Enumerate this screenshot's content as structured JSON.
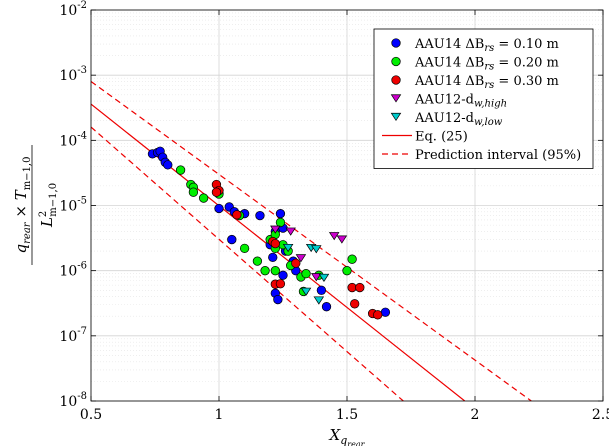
{
  "chart_data": {
    "type": "scatter",
    "xscale": "linear",
    "yscale": "log",
    "xlim": [
      0.5,
      2.5
    ],
    "ylim": [
      1e-08,
      0.01
    ],
    "xticks": [
      0.5,
      1,
      1.5,
      2,
      2.5
    ],
    "xtick_labels": [
      "0.5",
      "1",
      "1.5",
      "2",
      "2.5"
    ],
    "yticks": [
      1e-08,
      1e-07,
      1e-06,
      1e-05,
      0.0001,
      0.001,
      0.01
    ],
    "ytick_labels": [
      {
        "base": "10",
        "exp": "-8"
      },
      {
        "base": "10",
        "exp": "-7"
      },
      {
        "base": "10",
        "exp": "-6"
      },
      {
        "base": "10",
        "exp": "-5"
      },
      {
        "base": "10",
        "exp": "-4"
      },
      {
        "base": "10",
        "exp": "-3"
      },
      {
        "base": "10",
        "exp": "-2"
      }
    ],
    "grid": true,
    "minor_grid": true,
    "legend_position": "top-right",
    "xlabel": {
      "base": "X",
      "sub": "q",
      "subsub": "rear"
    },
    "ylabel": {
      "num_a": "q",
      "num_a_sub": "rear",
      "num_b": " × T",
      "num_b_sub": "m−1,0",
      "den": "L",
      "den_sup": "2",
      "den_sub": "m−1,0"
    },
    "series": [
      {
        "name": {
          "pre": "AAU14 ΔB",
          "sub": "rs",
          "post": " = 0.10 m"
        },
        "marker": "circle",
        "color": "#0000ff",
        "points": [
          [
            0.74,
            6.2e-05
          ],
          [
            0.76,
            6.5e-05
          ],
          [
            0.77,
            6.8e-05
          ],
          [
            0.78,
            5.5e-05
          ],
          [
            0.79,
            4.6e-05
          ],
          [
            0.8,
            4.2e-05
          ],
          [
            1.0,
            9e-06
          ],
          [
            1.04,
            9.5e-06
          ],
          [
            1.06,
            8e-06
          ],
          [
            1.1,
            7.5e-06
          ],
          [
            1.16,
            7e-06
          ],
          [
            1.05,
            3e-06
          ],
          [
            1.2,
            2.5e-06
          ],
          [
            1.21,
            1.6e-06
          ],
          [
            1.22,
            4e-06
          ],
          [
            1.24,
            7.5e-06
          ],
          [
            1.25,
            4.5e-06
          ],
          [
            1.26,
            2e-06
          ],
          [
            1.22,
            4.5e-07
          ],
          [
            1.23,
            3.6e-07
          ],
          [
            1.25,
            8.5e-07
          ],
          [
            1.29,
            1.4e-06
          ],
          [
            1.3,
            1e-06
          ],
          [
            1.4,
            5e-07
          ],
          [
            1.42,
            2.8e-07
          ],
          [
            1.65,
            2.3e-07
          ]
        ]
      },
      {
        "name": {
          "pre": "AAU14 ΔB",
          "sub": "rs",
          "post": " = 0.20 m"
        },
        "marker": "circle",
        "color": "#00ee00",
        "points": [
          [
            0.85,
            3.5e-05
          ],
          [
            0.89,
            2.1e-05
          ],
          [
            0.9,
            1.9e-05
          ],
          [
            0.9,
            1.6e-05
          ],
          [
            0.94,
            1.3e-05
          ],
          [
            1.0,
            1.5e-05
          ],
          [
            1.08,
            7e-06
          ],
          [
            1.1,
            2.2e-06
          ],
          [
            1.15,
            1.4e-06
          ],
          [
            1.18,
            1e-06
          ],
          [
            1.2,
            3e-06
          ],
          [
            1.22,
            3.6e-06
          ],
          [
            1.22,
            2.2e-06
          ],
          [
            1.22,
            1e-06
          ],
          [
            1.24,
            5.5e-06
          ],
          [
            1.25,
            2.5e-06
          ],
          [
            1.27,
            2e-06
          ],
          [
            1.28,
            1.2e-06
          ],
          [
            1.32,
            8e-07
          ],
          [
            1.34,
            9e-07
          ],
          [
            1.39,
            8.5e-07
          ],
          [
            1.33,
            4.8e-07
          ],
          [
            1.5,
            1e-06
          ],
          [
            1.52,
            1.5e-06
          ]
        ]
      },
      {
        "name": {
          "pre": "AAU14 ΔB",
          "sub": "rs",
          "post": " = 0.30 m"
        },
        "marker": "circle",
        "color": "#ee0000",
        "points": [
          [
            0.99,
            2.1e-05
          ],
          [
            1.0,
            1.7e-05
          ],
          [
            0.99,
            1.6e-05
          ],
          [
            1.07,
            7.2e-06
          ],
          [
            1.21,
            2.8e-06
          ],
          [
            1.22,
            2.6e-06
          ],
          [
            1.22,
            6.2e-07
          ],
          [
            1.24,
            6.3e-07
          ],
          [
            1.3,
            1.3e-06
          ],
          [
            1.52,
            5.5e-07
          ],
          [
            1.55,
            5.5e-07
          ],
          [
            1.53,
            3.1e-07
          ],
          [
            1.6,
            2.2e-07
          ],
          [
            1.62,
            2.1e-07
          ]
        ]
      },
      {
        "name": {
          "pre": "AAU12-d",
          "sub": "w,high",
          "post": ""
        },
        "marker": "triangle-down",
        "color": "#cc00cc",
        "points": [
          [
            1.22,
            4.4e-06
          ],
          [
            1.28,
            4.1e-06
          ],
          [
            1.32,
            1.6e-06
          ],
          [
            1.45,
            3.5e-06
          ],
          [
            1.48,
            3.1e-06
          ],
          [
            1.38,
            8.2e-07
          ]
        ]
      },
      {
        "name": {
          "pre": "AAU12-d",
          "sub": "w,low",
          "post": ""
        },
        "marker": "triangle-down",
        "color": "#00cccc",
        "points": [
          [
            1.27,
            2.3e-06
          ],
          [
            1.36,
            2.3e-06
          ],
          [
            1.38,
            2.2e-06
          ],
          [
            1.41,
            8e-07
          ],
          [
            1.34,
            4.9e-07
          ],
          [
            1.39,
            3.6e-07
          ]
        ]
      }
    ],
    "lines": [
      {
        "name": {
          "pre": "Eq. (25)",
          "sub": "",
          "post": ""
        },
        "style": "solid",
        "color": "#ee0000",
        "points": [
          [
            0.5,
            0.00036
          ],
          [
            1.96,
            1e-08
          ]
        ]
      },
      {
        "name": {
          "pre": "Prediction interval (95%)",
          "sub": "",
          "post": ""
        },
        "style": "dashed",
        "color": "#ee0000",
        "points": [
          [
            0.5,
            0.0008
          ],
          [
            2.22,
            1e-08
          ]
        ]
      },
      {
        "name": null,
        "style": "dashed",
        "color": "#ee0000",
        "points": [
          [
            0.5,
            0.00016
          ],
          [
            1.72,
            1e-08
          ]
        ]
      }
    ]
  }
}
